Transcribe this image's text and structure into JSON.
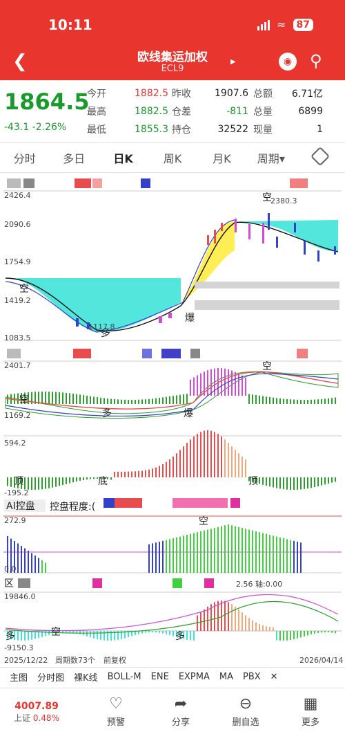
{
  "status": {
    "time": "10:11",
    "battery": "87"
  },
  "header": {
    "title": "欧线集运加权",
    "code": "ECL9"
  },
  "quote": {
    "price": "1864.5",
    "change": "-43.1",
    "change_pct": "-2.26%",
    "rows": [
      {
        "l1": "今开",
        "v1": "1882.5",
        "l2": "昨收",
        "v2": "1907.6",
        "l3": "总额",
        "v3": "6.71亿"
      },
      {
        "l1": "最高",
        "v1": "1882.5",
        "l2": "仓差",
        "v2": "-811",
        "l3": "总量",
        "v3": "6899"
      },
      {
        "l1": "最低",
        "v1": "1855.3",
        "l2": "持仓",
        "v2": "32522",
        "l3": "现量",
        "v3": "1"
      }
    ]
  },
  "tabs": [
    "分时",
    "多日",
    "日K",
    "周K",
    "月K",
    "周期"
  ],
  "chart": {
    "main_axis": [
      "2426.4",
      "2090.6",
      "1754.9",
      "1419.2",
      "1083.5"
    ],
    "main_peak": "2380.3",
    "main_low": "1117.8",
    "sig_kong": "空",
    "sig_duo": "多",
    "sig_bao": "爆",
    "sub1_axis": [
      "2401.7",
      "1169.2"
    ],
    "sub2_axis": [
      "594.2",
      "-195.2"
    ],
    "sig_ding": "顶",
    "sig_di": "底",
    "ai_label": "AI控盘",
    "ai_degree": "控盘程度:(",
    "sub3_axis": [
      "272.9",
      "0.0"
    ],
    "sig_ce": "区",
    "axis_info": "2.56 轴:0.00",
    "sub4_axis": [
      "19846.0",
      "-9150.3"
    ],
    "date_start": "2025/12/22",
    "period_count": "周期数73个",
    "adjust": "前复权",
    "date_end": "2026/04/14"
  },
  "indicator_bar": [
    "主图",
    "分时图",
    "裸K线",
    "BOLL-M",
    "ENE",
    "EXPMA",
    "MA",
    "PBX"
  ],
  "bottom": {
    "index_value": "4007.89",
    "index_label": "上证",
    "index_pct": "0.48%",
    "buttons": [
      {
        "icon": "bell-icon",
        "label": "预警"
      },
      {
        "icon": "share-icon",
        "label": "分享"
      },
      {
        "icon": "minus-circle-icon",
        "label": "删自选"
      },
      {
        "icon": "grid-icon",
        "label": "更多"
      }
    ]
  }
}
